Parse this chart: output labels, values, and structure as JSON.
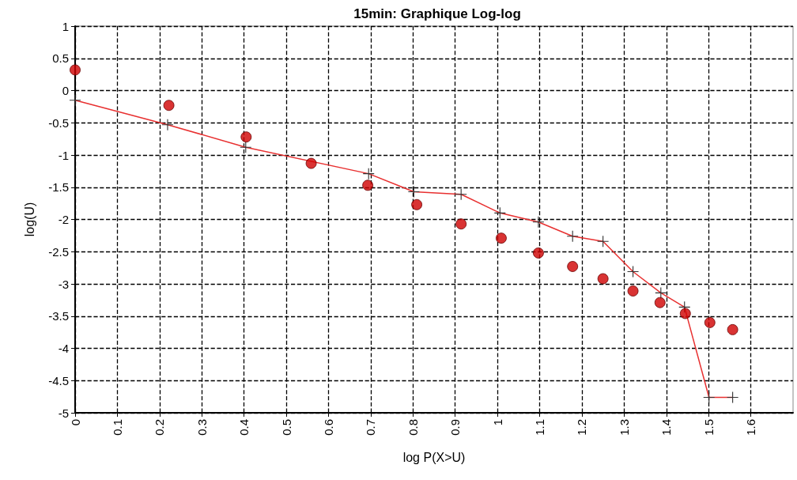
{
  "chart_data": {
    "type": "scatter",
    "title": "15min: Graphique Log-log",
    "xlabel": "log P(X>U)",
    "ylabel": "log(U)",
    "xlim": [
      0,
      1.7
    ],
    "xticks": [
      0,
      0.1,
      0.2,
      0.3,
      0.4,
      0.5,
      0.6,
      0.7,
      0.8,
      0.9,
      1,
      1.1,
      1.2,
      1.3,
      1.4,
      1.5,
      1.6
    ],
    "ylim": [
      -5,
      1
    ],
    "yticks": [
      -5,
      -4.5,
      -4,
      -3.5,
      -3,
      -2.5,
      -2,
      -1.5,
      -1,
      -0.5,
      0,
      0.5,
      1
    ],
    "grid": true,
    "series": [
      {
        "type": "line",
        "marker": "cross",
        "color": "#e83030",
        "x": [
          0,
          0.219,
          0.404,
          0.559,
          0.695,
          0.802,
          0.914,
          1.006,
          1.097,
          1.178,
          1.25,
          1.321,
          1.387,
          1.443,
          1.501,
          1.557
        ],
        "values": [
          -0.15,
          -0.53,
          -0.88,
          null,
          -1.29,
          -1.57,
          -1.61,
          -1.9,
          -2.04,
          -2.26,
          -2.34,
          -2.81,
          -3.14,
          -3.36,
          -4.76,
          -4.76
        ]
      },
      {
        "marker": "circle",
        "color": "#d00000",
        "x": [
          0,
          0.222,
          0.405,
          0.559,
          0.693,
          0.809,
          0.914,
          1.009,
          1.097,
          1.178,
          1.25,
          1.321,
          1.385,
          1.445,
          1.503,
          1.557
        ],
        "values": [
          0.32,
          -0.23,
          -0.72,
          -1.13,
          -1.47,
          -1.77,
          -2.07,
          -2.29,
          -2.52,
          -2.73,
          -2.92,
          -3.11,
          -3.29,
          -3.46,
          -3.6,
          -3.71
        ]
      }
    ]
  }
}
